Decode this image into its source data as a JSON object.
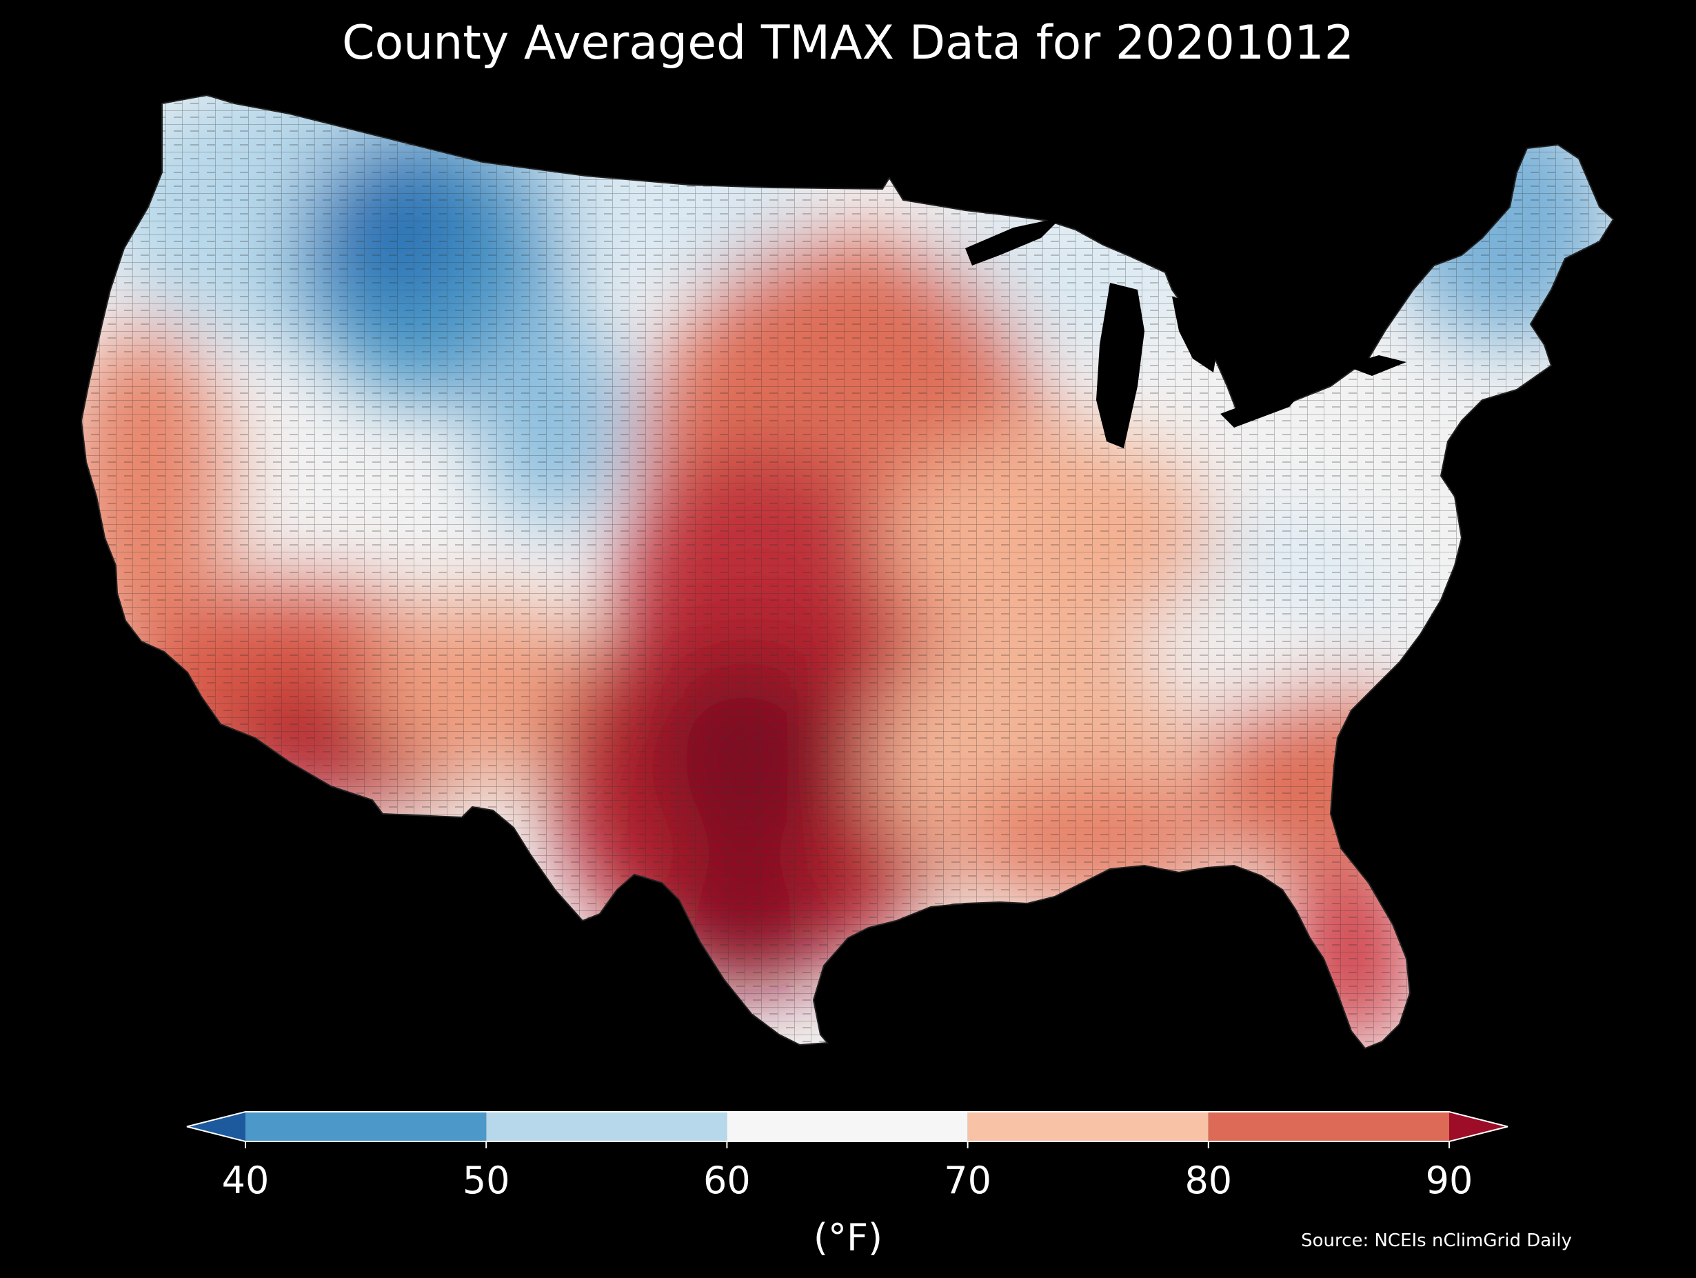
{
  "title": "County Averaged TMAX Data for 20201012",
  "colorbar": {
    "label": "(°F)",
    "ticks": [
      "40",
      "50",
      "60",
      "70",
      "80",
      "90"
    ],
    "tick_values": [
      40,
      50,
      60,
      70,
      80,
      90
    ],
    "extend": "both",
    "bins": [
      {
        "from": null,
        "to": 40,
        "color": "#1d5a9d"
      },
      {
        "from": 40,
        "to": 50,
        "color": "#4c98c8"
      },
      {
        "from": 50,
        "to": 60,
        "color": "#b7d8ea"
      },
      {
        "from": 60,
        "to": 70,
        "color": "#f6f6f6"
      },
      {
        "from": 70,
        "to": 80,
        "color": "#f8c2a6"
      },
      {
        "from": 80,
        "to": 90,
        "color": "#dc6a56"
      },
      {
        "from": 90,
        "to": null,
        "color": "#9d0d27"
      }
    ]
  },
  "source": "Source: NCEIs nClimGrid Daily",
  "map": {
    "region": "contiguous-united-states",
    "level": "county",
    "border_color": "#333333",
    "background": "#000000"
  }
}
